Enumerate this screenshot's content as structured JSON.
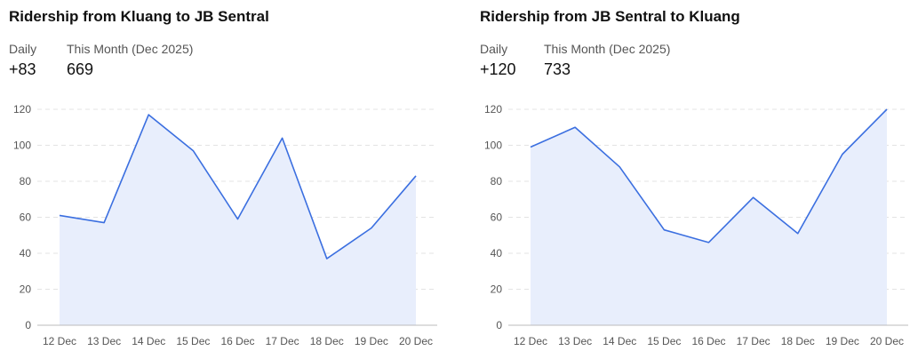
{
  "charts": [
    {
      "title": "Ridership from Kluang to JB Sentral",
      "daily_label": "Daily",
      "daily_value": "+83",
      "month_label": "This Month (Dec 2025)",
      "month_value": "669"
    },
    {
      "title": "Ridership from JB Sentral to Kluang",
      "daily_label": "Daily",
      "daily_value": "+120",
      "month_label": "This Month (Dec 2025)",
      "month_value": "733"
    }
  ],
  "colors": {
    "line": "#3b6fe0",
    "fill": "#e8eefc",
    "grid": "#e3e3e3",
    "axis": "#bbbbbb"
  },
  "chart_data": [
    {
      "type": "area",
      "title": "Ridership from Kluang to JB Sentral",
      "categories": [
        "12 Dec",
        "13 Dec",
        "14 Dec",
        "15 Dec",
        "16 Dec",
        "17 Dec",
        "18 Dec",
        "19 Dec",
        "20 Dec"
      ],
      "values": [
        61,
        57,
        117,
        97,
        59,
        104,
        37,
        54,
        83
      ],
      "yticks": [
        0,
        20,
        40,
        60,
        80,
        100,
        120
      ],
      "ylim": [
        0,
        120
      ],
      "grid": true
    },
    {
      "type": "area",
      "title": "Ridership from JB Sentral to Kluang",
      "categories": [
        "12 Dec",
        "13 Dec",
        "14 Dec",
        "15 Dec",
        "16 Dec",
        "17 Dec",
        "18 Dec",
        "19 Dec",
        "20 Dec"
      ],
      "values": [
        99,
        110,
        88,
        53,
        46,
        71,
        51,
        95,
        120
      ],
      "yticks": [
        0,
        20,
        40,
        60,
        80,
        100,
        120
      ],
      "ylim": [
        0,
        120
      ],
      "grid": true
    }
  ]
}
